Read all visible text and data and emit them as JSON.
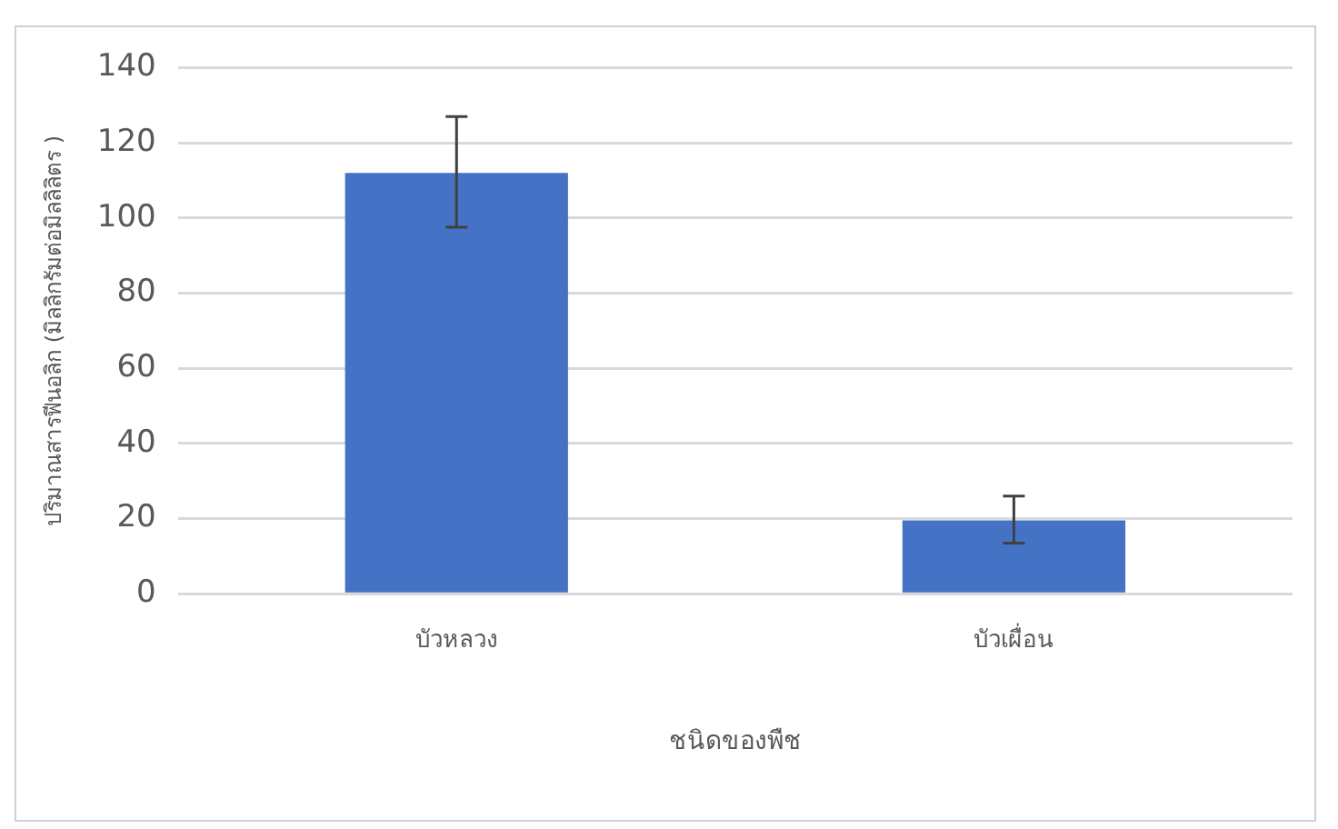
{
  "chart_data": {
    "type": "bar",
    "xlabel": "ชนิดของพืช",
    "ylabel": "ปริมาณสารฟีนอลิก (มิลลิกรัมต่อมิลลิลิตร )",
    "categories": [
      "บัวหลวง",
      "บัวเผื่อน"
    ],
    "values": [
      112,
      19.5
    ],
    "errors": [
      [
        97.5,
        127
      ],
      [
        13.5,
        26
      ]
    ],
    "color": "#4472c4",
    "ylim": [
      0,
      140
    ],
    "yticks": [
      0,
      20,
      40,
      60,
      80,
      100,
      120,
      140
    ],
    "grid": "y",
    "legend": false
  }
}
